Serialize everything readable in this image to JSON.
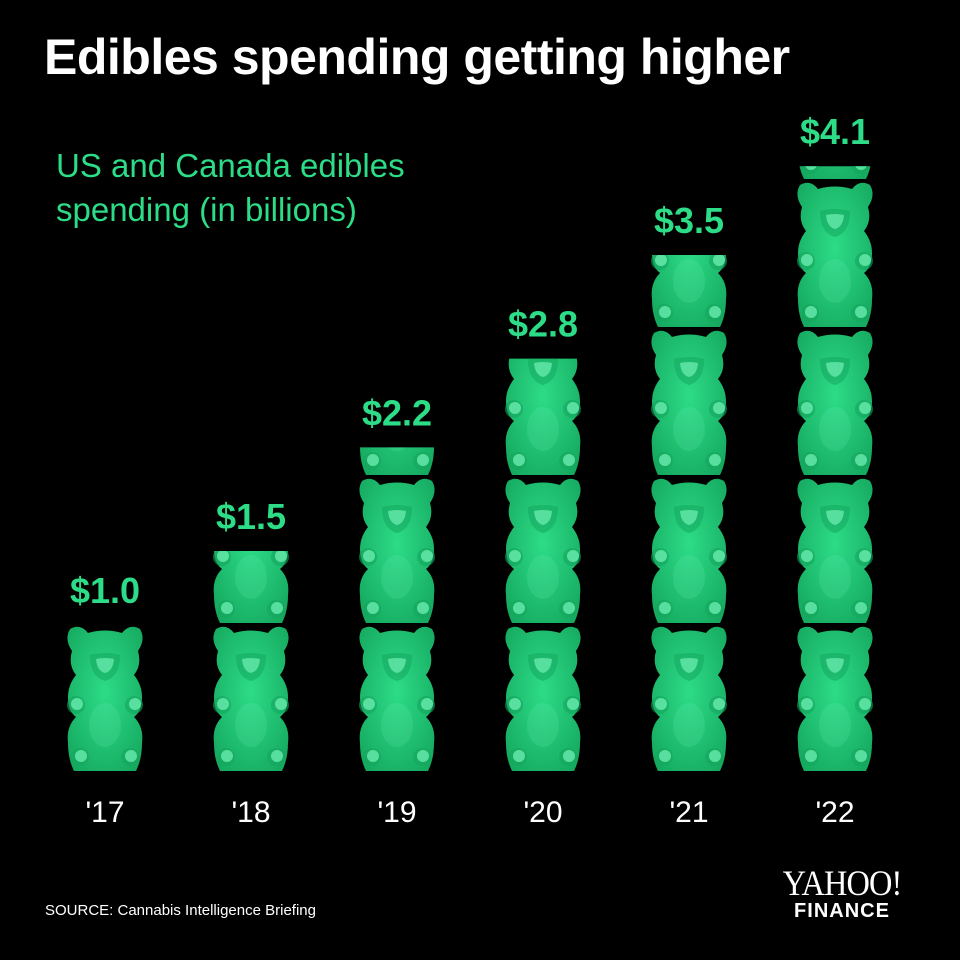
{
  "title": "Edibles spending getting higher",
  "subtitle": "US and Canada edibles spending (in billions)",
  "source": "SOURCE: Cannabis Intelligence Briefing",
  "logo": {
    "main": "YAHOO!",
    "sub": "FINANCE"
  },
  "colors": {
    "background": "#000000",
    "bear": "#2ddc87",
    "bear_highlight": "#6ff0b5",
    "bear_shadow": "#14a75e",
    "value_label": "#2ddc87",
    "text": "#ffffff"
  },
  "chart_data": {
    "type": "bar",
    "style": "pictograph (stacked gummy bears, one bear = $1.0 billion)",
    "unit_per_icon": 1.0,
    "categories": [
      "'17",
      "'18",
      "'19",
      "'20",
      "'21",
      "'22"
    ],
    "values": [
      1.0,
      1.5,
      2.2,
      2.8,
      3.5,
      4.1
    ],
    "value_labels": [
      "$1.0",
      "$1.5",
      "$2.2",
      "$2.8",
      "$3.5",
      "$4.1"
    ],
    "title": "Edibles spending getting higher",
    "ylabel": "US and Canada edibles spending (in billions)",
    "ylim": [
      0,
      4.1
    ],
    "grid": false
  }
}
